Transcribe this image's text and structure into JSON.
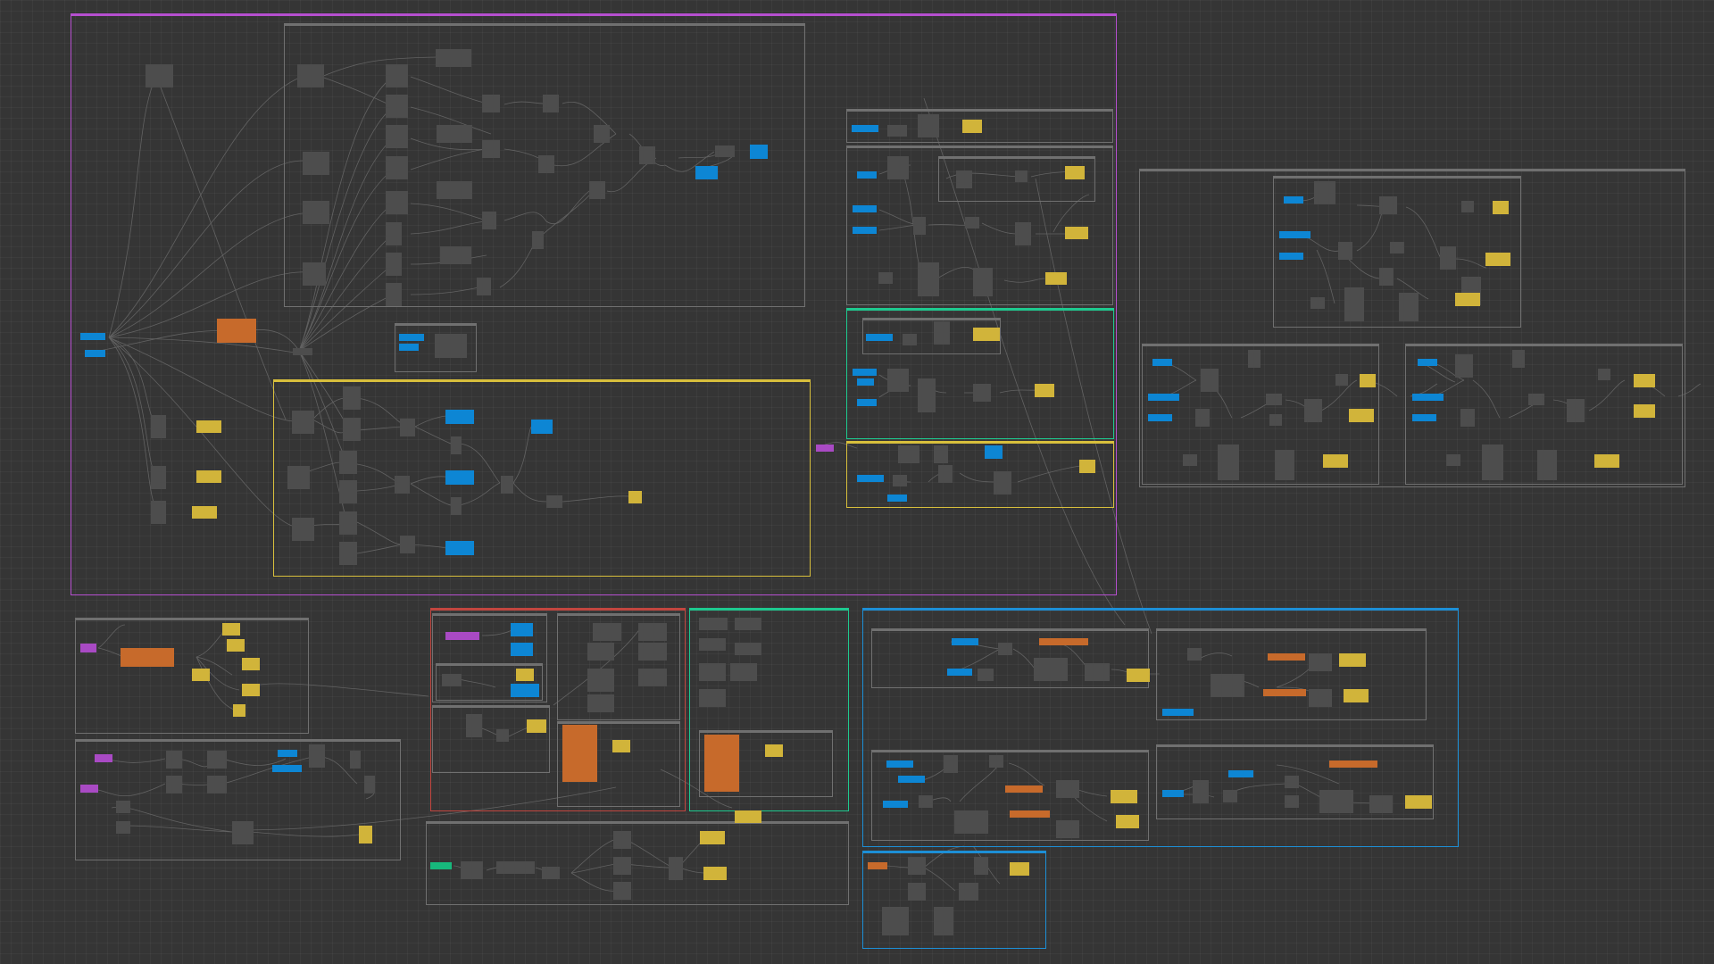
{
  "canvas": {
    "background": "#353535",
    "grid": true
  },
  "colors": {
    "group_purple": "#b64fd0",
    "group_yellow": "#d8bf3c",
    "group_green": "#1ec98f",
    "group_red": "#c2463f",
    "group_blue": "#1d8fd6",
    "group_gray": "#707070",
    "node_gray": "#4d4d4d",
    "node_blue": "#0d86d4",
    "node_yellow": "#d1b43a",
    "node_orange": "#c76a2b",
    "node_purple": "#a94ac4",
    "node_teal": "#17b87c",
    "wire": "#6a6a6a"
  },
  "groups": [
    {
      "id": "main-purple-group",
      "title": ""
    },
    {
      "id": "top-subgraph",
      "title": ""
    },
    {
      "id": "yellow-subgraph",
      "title": ""
    },
    {
      "id": "small-mid-group",
      "title": ""
    },
    {
      "id": "right-top-thin",
      "title": ""
    },
    {
      "id": "right-upper",
      "title": ""
    },
    {
      "id": "right-upper-inner",
      "title": ""
    },
    {
      "id": "right-green",
      "title": ""
    },
    {
      "id": "right-green-inner",
      "title": ""
    },
    {
      "id": "right-yellow",
      "title": ""
    },
    {
      "id": "far-right-group",
      "title": ""
    },
    {
      "id": "bottom-left-top",
      "title": ""
    },
    {
      "id": "bottom-left-bottom",
      "title": ""
    },
    {
      "id": "red-group",
      "title": ""
    },
    {
      "id": "green-bottom-group",
      "title": ""
    },
    {
      "id": "center-bottom-group",
      "title": ""
    },
    {
      "id": "blue-big-group",
      "title": ""
    },
    {
      "id": "blue-small-group",
      "title": ""
    }
  ]
}
